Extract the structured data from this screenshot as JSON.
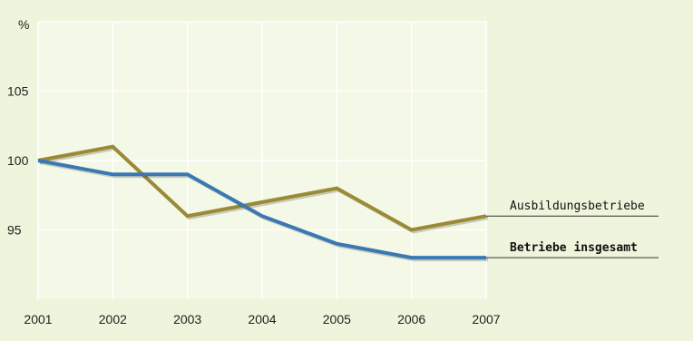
{
  "chart_data": {
    "type": "line",
    "y_unit": "%",
    "x": [
      "2001",
      "2002",
      "2003",
      "2004",
      "2005",
      "2006",
      "2007"
    ],
    "series": [
      {
        "name": "Ausbildungsbetriebe",
        "values": [
          100,
          101,
          96,
          97,
          98,
          95,
          96
        ],
        "color": "#9b8a35"
      },
      {
        "name": "Betriebe insgesamt",
        "values": [
          100,
          99,
          99,
          96,
          94,
          93,
          93
        ],
        "color": "#3a78b3"
      }
    ],
    "y_ticks": [
      "105",
      "100",
      "95"
    ],
    "ylim": [
      90,
      110
    ],
    "grid": true,
    "legend": "right, at line ends"
  }
}
